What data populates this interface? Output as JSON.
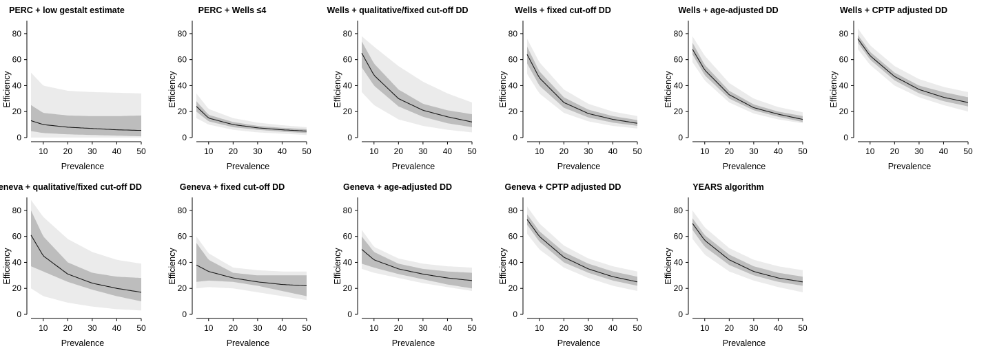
{
  "figure": {
    "band_colors": {
      "outer": "#ebebeb",
      "inner": "#bdbdbd",
      "line": "#1a1a1a"
    }
  },
  "chart_data": [
    {
      "type": "line",
      "title": "PERC + low gestalt estimate",
      "xlabel": "Prevalence",
      "ylabel": "Efficiency",
      "xlim": [
        5,
        50
      ],
      "ylim": [
        0,
        90
      ],
      "xticks": [
        10,
        20,
        30,
        40,
        50
      ],
      "yticks": [
        0,
        20,
        40,
        60,
        80
      ],
      "x": [
        5,
        10,
        20,
        30,
        40,
        50
      ],
      "series": [
        {
          "values": [
            13,
            10,
            8,
            7,
            6,
            5.5
          ]
        },
        {
          "values": [
            5,
            3.5,
            2.5,
            2,
            1.5,
            1
          ],
          "role": "inner_lower"
        },
        {
          "values": [
            25,
            19,
            17,
            16.5,
            16.5,
            17
          ],
          "role": "inner_upper"
        },
        {
          "values": [
            0,
            0,
            0,
            0,
            0,
            0
          ],
          "role": "outer_lower"
        },
        {
          "values": [
            50,
            40,
            36,
            35,
            34.5,
            34
          ],
          "role": "outer_upper"
        }
      ]
    },
    {
      "type": "line",
      "title": "PERC + Wells ≤4",
      "xlabel": "Prevalence",
      "ylabel": "Efficiency",
      "xlim": [
        5,
        50
      ],
      "ylim": [
        0,
        90
      ],
      "xticks": [
        10,
        20,
        30,
        40,
        50
      ],
      "yticks": [
        0,
        20,
        40,
        60,
        80
      ],
      "x": [
        5,
        10,
        20,
        30,
        40,
        50
      ],
      "series": [
        {
          "values": [
            24,
            15,
            10,
            7.5,
            6,
            5
          ]
        },
        {
          "values": [
            20,
            12.5,
            8,
            6,
            4.5,
            3.5
          ],
          "role": "inner_lower"
        },
        {
          "values": [
            28,
            17.5,
            12,
            9,
            7.5,
            6.5
          ],
          "role": "inner_upper"
        },
        {
          "values": [
            15,
            10,
            6,
            4,
            3,
            2
          ],
          "role": "outer_lower"
        },
        {
          "values": [
            34,
            22,
            15,
            11.5,
            9.5,
            8
          ],
          "role": "outer_upper"
        }
      ]
    },
    {
      "type": "line",
      "title": "Wells + qualitative/fixed cut-off DD",
      "xlabel": "Prevalence",
      "ylabel": "Efficiency",
      "xlim": [
        5,
        50
      ],
      "ylim": [
        0,
        90
      ],
      "xticks": [
        10,
        20,
        30,
        40,
        50
      ],
      "yticks": [
        0,
        20,
        40,
        60,
        80
      ],
      "x": [
        5,
        10,
        20,
        30,
        40,
        50
      ],
      "series": [
        {
          "values": [
            65,
            48,
            30,
            21,
            16,
            12
          ]
        },
        {
          "values": [
            54,
            40,
            24,
            16,
            11,
            8
          ],
          "role": "inner_lower"
        },
        {
          "values": [
            74,
            57,
            37,
            26,
            21,
            18
          ],
          "role": "inner_upper"
        },
        {
          "values": [
            35,
            25,
            14,
            9,
            6,
            4
          ],
          "role": "outer_lower"
        },
        {
          "values": [
            78,
            70,
            55,
            43,
            34,
            27
          ],
          "role": "outer_upper"
        }
      ]
    },
    {
      "type": "line",
      "title": "Wells + fixed cut-off DD",
      "xlabel": "Prevalence",
      "ylabel": "Efficiency",
      "xlim": [
        5,
        50
      ],
      "ylim": [
        0,
        90
      ],
      "xticks": [
        10,
        20,
        30,
        40,
        50
      ],
      "yticks": [
        0,
        20,
        40,
        60,
        80
      ],
      "x": [
        5,
        10,
        20,
        30,
        40,
        50
      ],
      "series": [
        {
          "values": [
            64,
            46,
            27,
            18.5,
            14,
            11
          ]
        },
        {
          "values": [
            57,
            40,
            23,
            15.5,
            11.5,
            9
          ],
          "role": "inner_lower"
        },
        {
          "values": [
            70,
            51,
            31,
            21.5,
            16.5,
            13.5
          ],
          "role": "inner_upper"
        },
        {
          "values": [
            49,
            34,
            19,
            12.5,
            9,
            7
          ],
          "role": "outer_lower"
        },
        {
          "values": [
            76,
            58,
            37,
            26,
            20,
            16.5
          ],
          "role": "outer_upper"
        }
      ]
    },
    {
      "type": "line",
      "title": "Wells + age-adjusted DD",
      "xlabel": "Prevalence",
      "ylabel": "Efficiency",
      "xlim": [
        5,
        50
      ],
      "ylim": [
        0,
        90
      ],
      "xticks": [
        10,
        20,
        30,
        40,
        50
      ],
      "yticks": [
        0,
        20,
        40,
        60,
        80
      ],
      "x": [
        5,
        10,
        20,
        30,
        40,
        50
      ],
      "series": [
        {
          "values": [
            68,
            52,
            33,
            23,
            18,
            14
          ]
        },
        {
          "values": [
            64,
            48,
            30,
            21,
            16,
            12
          ],
          "role": "inner_lower"
        },
        {
          "values": [
            73,
            56,
            36,
            25.5,
            20,
            16.5
          ],
          "role": "inner_upper"
        },
        {
          "values": [
            58,
            44,
            27,
            18.5,
            14,
            11
          ],
          "role": "outer_lower"
        },
        {
          "values": [
            78,
            63,
            42,
            30,
            23.5,
            19.5
          ],
          "role": "outer_upper"
        }
      ]
    },
    {
      "type": "line",
      "title": "Wells + CPTP adjusted DD",
      "xlabel": "Prevalence",
      "ylabel": "Efficiency",
      "xlim": [
        5,
        50
      ],
      "ylim": [
        0,
        90
      ],
      "xticks": [
        10,
        20,
        30,
        40,
        50
      ],
      "yticks": [
        0,
        20,
        40,
        60,
        80
      ],
      "x": [
        5,
        10,
        20,
        30,
        40,
        50
      ],
      "series": [
        {
          "values": [
            76,
            63,
            47,
            37,
            31,
            27
          ]
        },
        {
          "values": [
            73,
            60,
            44,
            34,
            28,
            24
          ],
          "role": "inner_lower"
        },
        {
          "values": [
            79,
            66,
            50,
            40,
            35,
            31
          ],
          "role": "inner_upper"
        },
        {
          "values": [
            68,
            56,
            40,
            31,
            25,
            20
          ],
          "role": "outer_lower"
        },
        {
          "values": [
            84,
            71,
            55,
            45,
            39,
            35
          ],
          "role": "outer_upper"
        }
      ]
    },
    {
      "type": "line",
      "title": "Geneva + qualitative/fixed cut-off DD",
      "xlabel": "Prevalence",
      "ylabel": "Efficiency",
      "xlim": [
        5,
        50
      ],
      "ylim": [
        0,
        90
      ],
      "xticks": [
        10,
        20,
        30,
        40,
        50
      ],
      "yticks": [
        0,
        20,
        40,
        60,
        80
      ],
      "x": [
        5,
        10,
        20,
        30,
        40,
        50
      ],
      "series": [
        {
          "values": [
            61,
            45,
            31,
            24,
            20,
            17
          ]
        },
        {
          "values": [
            37,
            33,
            25,
            19,
            14,
            10
          ],
          "role": "inner_lower"
        },
        {
          "values": [
            80,
            60,
            40,
            32,
            29,
            28
          ],
          "role": "inner_upper"
        },
        {
          "values": [
            20,
            14,
            9,
            6,
            4,
            3
          ],
          "role": "outer_lower"
        },
        {
          "values": [
            88,
            75,
            58,
            48,
            42,
            39
          ],
          "role": "outer_upper"
        }
      ]
    },
    {
      "type": "line",
      "title": "Geneva + fixed cut-off DD",
      "xlabel": "Prevalence",
      "ylabel": "Efficiency",
      "xlim": [
        5,
        50
      ],
      "ylim": [
        0,
        90
      ],
      "xticks": [
        10,
        20,
        30,
        40,
        50
      ],
      "yticks": [
        0,
        20,
        40,
        60,
        80
      ],
      "x": [
        5,
        10,
        20,
        30,
        40,
        50
      ],
      "series": [
        {
          "values": [
            38,
            33,
            28,
            25,
            23,
            22
          ]
        },
        {
          "values": [
            25,
            26,
            25,
            22,
            18,
            14
          ],
          "role": "inner_lower"
        },
        {
          "values": [
            55,
            42,
            32,
            30,
            30,
            30
          ],
          "role": "inner_upper"
        },
        {
          "values": [
            20,
            21,
            20,
            17,
            14,
            11
          ],
          "role": "outer_lower"
        },
        {
          "values": [
            60,
            47,
            36,
            34,
            33,
            33
          ],
          "role": "outer_upper"
        }
      ]
    },
    {
      "type": "line",
      "title": "Geneva + age-adjusted DD",
      "xlabel": "Prevalence",
      "ylabel": "Efficiency",
      "xlim": [
        5,
        50
      ],
      "ylim": [
        0,
        90
      ],
      "xticks": [
        10,
        20,
        30,
        40,
        50
      ],
      "yticks": [
        0,
        20,
        40,
        60,
        80
      ],
      "x": [
        5,
        10,
        20,
        30,
        40,
        50
      ],
      "series": [
        {
          "values": [
            50,
            42,
            35,
            31,
            28,
            26
          ]
        },
        {
          "values": [
            39,
            36,
            31,
            27,
            23,
            20
          ],
          "role": "inner_lower"
        },
        {
          "values": [
            60,
            48,
            39,
            35,
            33,
            32
          ],
          "role": "inner_upper"
        },
        {
          "values": [
            35,
            32,
            28,
            24,
            21,
            18
          ],
          "role": "outer_lower"
        },
        {
          "values": [
            65,
            52,
            43,
            39,
            37,
            36
          ],
          "role": "outer_upper"
        }
      ]
    },
    {
      "type": "line",
      "title": "Geneva + CPTP adjusted DD",
      "xlabel": "Prevalence",
      "ylabel": "Efficiency",
      "xlim": [
        5,
        50
      ],
      "ylim": [
        0,
        90
      ],
      "xticks": [
        10,
        20,
        30,
        40,
        50
      ],
      "yticks": [
        0,
        20,
        40,
        60,
        80
      ],
      "x": [
        5,
        10,
        20,
        30,
        40,
        50
      ],
      "series": [
        {
          "values": [
            73,
            60,
            44,
            35,
            29,
            25
          ]
        },
        {
          "values": [
            69,
            56,
            40,
            32,
            26,
            22
          ],
          "role": "inner_lower"
        },
        {
          "values": [
            77,
            64,
            48,
            39,
            33,
            29
          ],
          "role": "inner_upper"
        },
        {
          "values": [
            62,
            50,
            36,
            28,
            22,
            18
          ],
          "role": "outer_lower"
        },
        {
          "values": [
            83,
            70,
            53,
            43,
            37,
            33
          ],
          "role": "outer_upper"
        }
      ]
    },
    {
      "type": "line",
      "title": "YEARS algorithm",
      "xlabel": "Prevalence",
      "ylabel": "Efficiency",
      "xlim": [
        5,
        50
      ],
      "ylim": [
        0,
        90
      ],
      "xticks": [
        10,
        20,
        30,
        40,
        50
      ],
      "yticks": [
        0,
        20,
        40,
        60,
        80
      ],
      "x": [
        5,
        10,
        20,
        30,
        40,
        50
      ],
      "series": [
        {
          "values": [
            70,
            57,
            42,
            33,
            28,
            25
          ]
        },
        {
          "values": [
            65,
            52,
            38,
            30,
            25,
            22
          ],
          "role": "inner_lower"
        },
        {
          "values": [
            74,
            61,
            46,
            37,
            32,
            29
          ],
          "role": "inner_upper"
        },
        {
          "values": [
            58,
            46,
            33,
            26,
            21,
            17
          ],
          "role": "outer_lower"
        },
        {
          "values": [
            80,
            67,
            51,
            42,
            37,
            34
          ],
          "role": "outer_upper"
        }
      ]
    }
  ]
}
